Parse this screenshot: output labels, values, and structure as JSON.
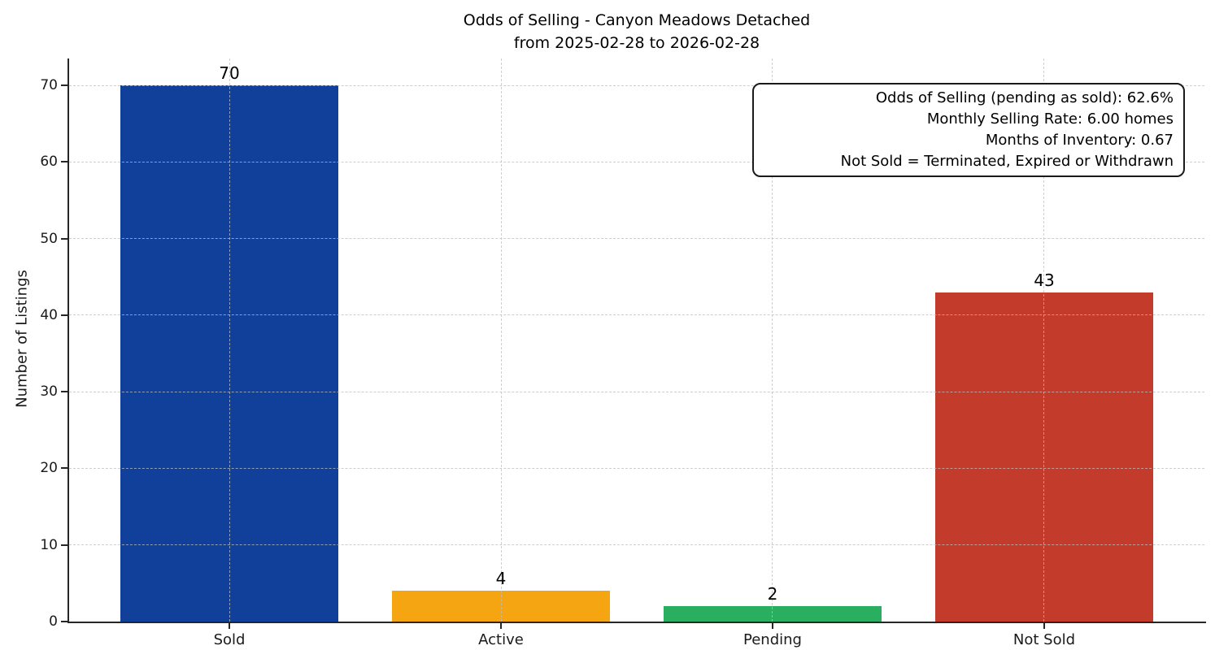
{
  "chart_data": {
    "type": "bar",
    "title_lines": [
      "Odds of Selling - Canyon Meadows Detached",
      "from 2025-02-28 to 2026-02-28"
    ],
    "ylabel": "Number of Listings",
    "xlabel": "",
    "categories": [
      "Sold",
      "Active",
      "Pending",
      "Not Sold"
    ],
    "values": [
      70,
      4,
      2,
      43
    ],
    "bar_colors": [
      "#10409a",
      "#f5a412",
      "#2aae5f",
      "#c23b2b"
    ],
    "value_labels": [
      "70",
      "4",
      "2",
      "43"
    ],
    "ylim": [
      0,
      73.5
    ],
    "yticks": [
      0,
      10,
      20,
      30,
      40,
      50,
      60,
      70
    ],
    "grid": {
      "style": "dashed",
      "axes": "both",
      "drawn_above_bars": true
    },
    "legend_position": "none",
    "annotation_box": {
      "position": "top-right",
      "lines": [
        "Odds of Selling (pending as sold): 62.6%",
        "Monthly Selling Rate: 6.00 homes",
        "Months of Inventory: 0.67",
        "Not Sold = Terminated, Expired or Withdrawn"
      ]
    }
  }
}
